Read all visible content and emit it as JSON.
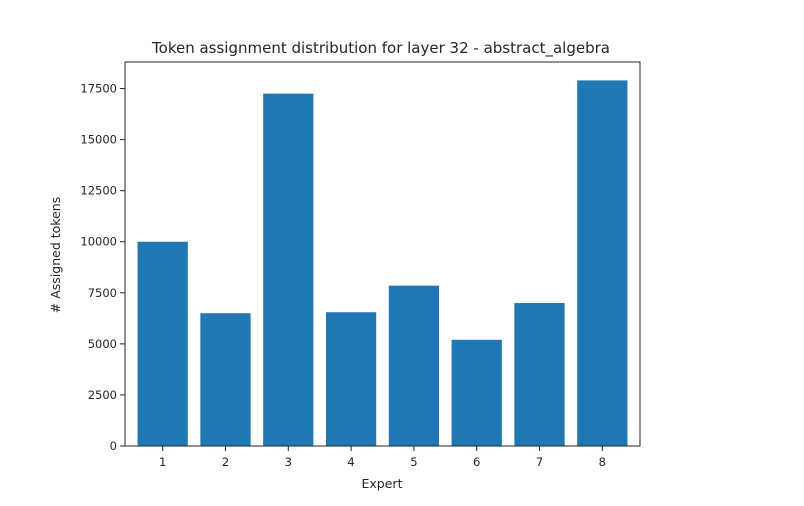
{
  "chart_data": {
    "type": "bar",
    "title": "Token assignment distribution for layer 32 - abstract_algebra",
    "xlabel": "Expert",
    "ylabel": "# Assigned tokens",
    "categories": [
      "1",
      "2",
      "3",
      "4",
      "5",
      "6",
      "7",
      "8"
    ],
    "values": [
      10000,
      6500,
      17250,
      6550,
      7850,
      5200,
      7000,
      17900
    ],
    "ylim": [
      0,
      18800
    ],
    "yticks": [
      0,
      2500,
      5000,
      7500,
      10000,
      12500,
      15000,
      17500
    ],
    "ytick_labels": [
      "0",
      "2500",
      "5000",
      "7500",
      "10000",
      "12500",
      "15000",
      "17500"
    ],
    "grid": false,
    "legend": "none",
    "colors": {
      "bar": "#1f77b4",
      "axes": "#262626",
      "background": "#ffffff"
    }
  }
}
